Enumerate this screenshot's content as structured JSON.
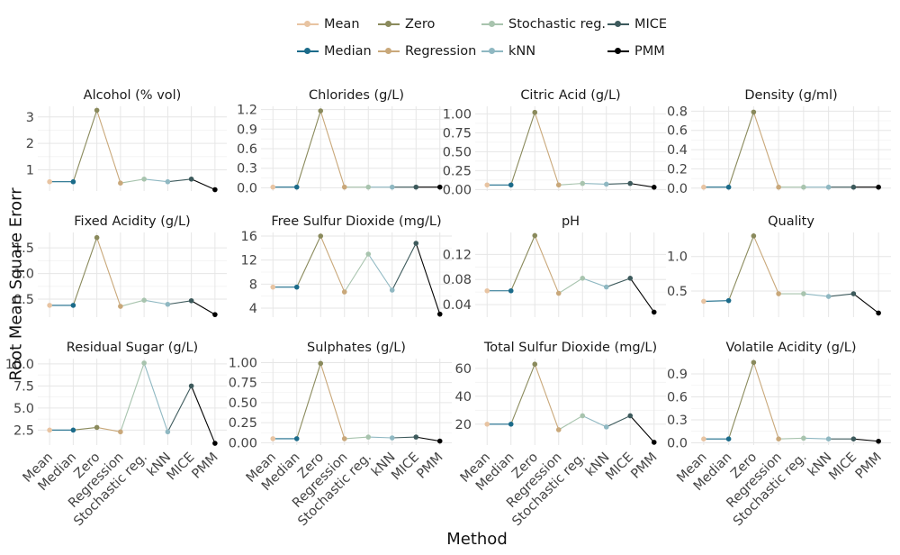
{
  "chart_data": {
    "type": "line",
    "xlabel": "Method",
    "ylabel": "Root Mean Square Erorr",
    "categories": [
      "Mean",
      "Median",
      "Zero",
      "Regression",
      "Stochastic reg.",
      "kNN",
      "MICE",
      "PMM"
    ],
    "legend": {
      "placement": "top",
      "entries": [
        {
          "name": "Mean",
          "color": "#e8c4a2"
        },
        {
          "name": "Median",
          "color": "#1b6b8a"
        },
        {
          "name": "Zero",
          "color": "#8a8a5c"
        },
        {
          "name": "Regression",
          "color": "#c9a87a"
        },
        {
          "name": "Stochastic reg.",
          "color": "#a8c4ae"
        },
        {
          "name": "kNN",
          "color": "#8fb8c2"
        },
        {
          "name": "MICE",
          "color": "#3d5a5c"
        },
        {
          "name": "PMM",
          "color": "#000000"
        }
      ]
    },
    "grid": true,
    "panels": [
      {
        "title": "Alcohol (% vol)",
        "ylim": [
          0.2,
          3.4
        ],
        "ticks": [
          1,
          2,
          3
        ],
        "tick_labels": [
          "1",
          "2",
          "3"
        ],
        "values": [
          0.55,
          0.55,
          3.25,
          0.5,
          0.65,
          0.55,
          0.65,
          0.25
        ]
      },
      {
        "title": "Chlorides (g/L)",
        "ylim": [
          -0.05,
          1.25
        ],
        "ticks": [
          0,
          0.3,
          0.6,
          0.9,
          1.2
        ],
        "tick_labels": [
          "0.0",
          "0.3",
          "0.6",
          "0.9",
          "1.2"
        ],
        "values": [
          0.01,
          0.01,
          1.18,
          0.01,
          0.01,
          0.01,
          0.01,
          0.01
        ]
      },
      {
        "title": "Citric Acid (g/L)",
        "ylim": [
          -0.02,
          1.1
        ],
        "ticks": [
          0,
          0.25,
          0.5,
          0.75,
          1.0
        ],
        "tick_labels": [
          "0.00",
          "0.25",
          "0.50",
          "0.75",
          "1.00"
        ],
        "values": [
          0.06,
          0.06,
          1.02,
          0.06,
          0.08,
          0.07,
          0.08,
          0.03
        ]
      },
      {
        "title": "Density (g/ml)",
        "ylim": [
          -0.03,
          0.85
        ],
        "ticks": [
          0,
          0.2,
          0.4,
          0.6,
          0.8
        ],
        "tick_labels": [
          "0.0",
          "0.2",
          "0.4",
          "0.6",
          "0.8"
        ],
        "values": [
          0.01,
          0.01,
          0.79,
          0.01,
          0.01,
          0.01,
          0.01,
          0.01
        ]
      },
      {
        "title": "Fixed Acidity (g/L)",
        "ylim": [
          0.15,
          1.8
        ],
        "ticks": [
          0.5,
          1.0,
          1.5
        ],
        "tick_labels": [
          "0.5",
          "1.0",
          "1.5"
        ],
        "values": [
          0.38,
          0.38,
          1.7,
          0.36,
          0.48,
          0.4,
          0.47,
          0.2
        ]
      },
      {
        "title": "Free Sulfur Dioxide (mg/L)",
        "ylim": [
          2.5,
          16.6
        ],
        "ticks": [
          4,
          8,
          12,
          16
        ],
        "tick_labels": [
          "4",
          "8",
          "12",
          "16"
        ],
        "values": [
          7.5,
          7.5,
          16.0,
          6.7,
          13.0,
          7.0,
          14.8,
          3.0
        ]
      },
      {
        "title": "pH",
        "ylim": [
          0.02,
          0.155
        ],
        "ticks": [
          0.04,
          0.08,
          0.12
        ],
        "tick_labels": [
          "0.04",
          "0.08",
          "0.12"
        ],
        "values": [
          0.062,
          0.062,
          0.15,
          0.058,
          0.082,
          0.068,
          0.082,
          0.028
        ]
      },
      {
        "title": "Quality",
        "ylim": [
          0.12,
          1.35
        ],
        "ticks": [
          0.5,
          1.0
        ],
        "tick_labels": [
          "0.5",
          "1.0"
        ],
        "values": [
          0.35,
          0.36,
          1.3,
          0.46,
          0.46,
          0.42,
          0.46,
          0.18
        ]
      },
      {
        "title": "Residual Sugar (g/L)",
        "ylim": [
          0.8,
          10.6
        ],
        "ticks": [
          2.5,
          5.0,
          7.5,
          10.0
        ],
        "tick_labels": [
          "2.5",
          "5.0",
          "7.5",
          "10.0"
        ],
        "values": [
          2.5,
          2.5,
          2.8,
          2.3,
          10.1,
          2.3,
          7.5,
          1.0
        ]
      },
      {
        "title": "Sulphates (g/L)",
        "ylim": [
          -0.03,
          1.05
        ],
        "ticks": [
          0,
          0.25,
          0.5,
          0.75,
          1.0
        ],
        "tick_labels": [
          "0.00",
          "0.25",
          "0.50",
          "0.75",
          "1.00"
        ],
        "values": [
          0.05,
          0.05,
          0.99,
          0.05,
          0.07,
          0.06,
          0.07,
          0.02
        ]
      },
      {
        "title": "Total Sulfur Dioxide (mg/L)",
        "ylim": [
          5,
          67
        ],
        "ticks": [
          20,
          40,
          60
        ],
        "tick_labels": [
          "20",
          "40",
          "60"
        ],
        "values": [
          20,
          20,
          63,
          16,
          26,
          18,
          26,
          7
        ]
      },
      {
        "title": "Volatile Acidity (g/L)",
        "ylim": [
          -0.03,
          1.1
        ],
        "ticks": [
          0,
          0.3,
          0.6,
          0.9
        ],
        "tick_labels": [
          "0.0",
          "0.3",
          "0.6",
          "0.9"
        ],
        "values": [
          0.05,
          0.05,
          1.05,
          0.05,
          0.06,
          0.05,
          0.05,
          0.02
        ]
      }
    ]
  }
}
